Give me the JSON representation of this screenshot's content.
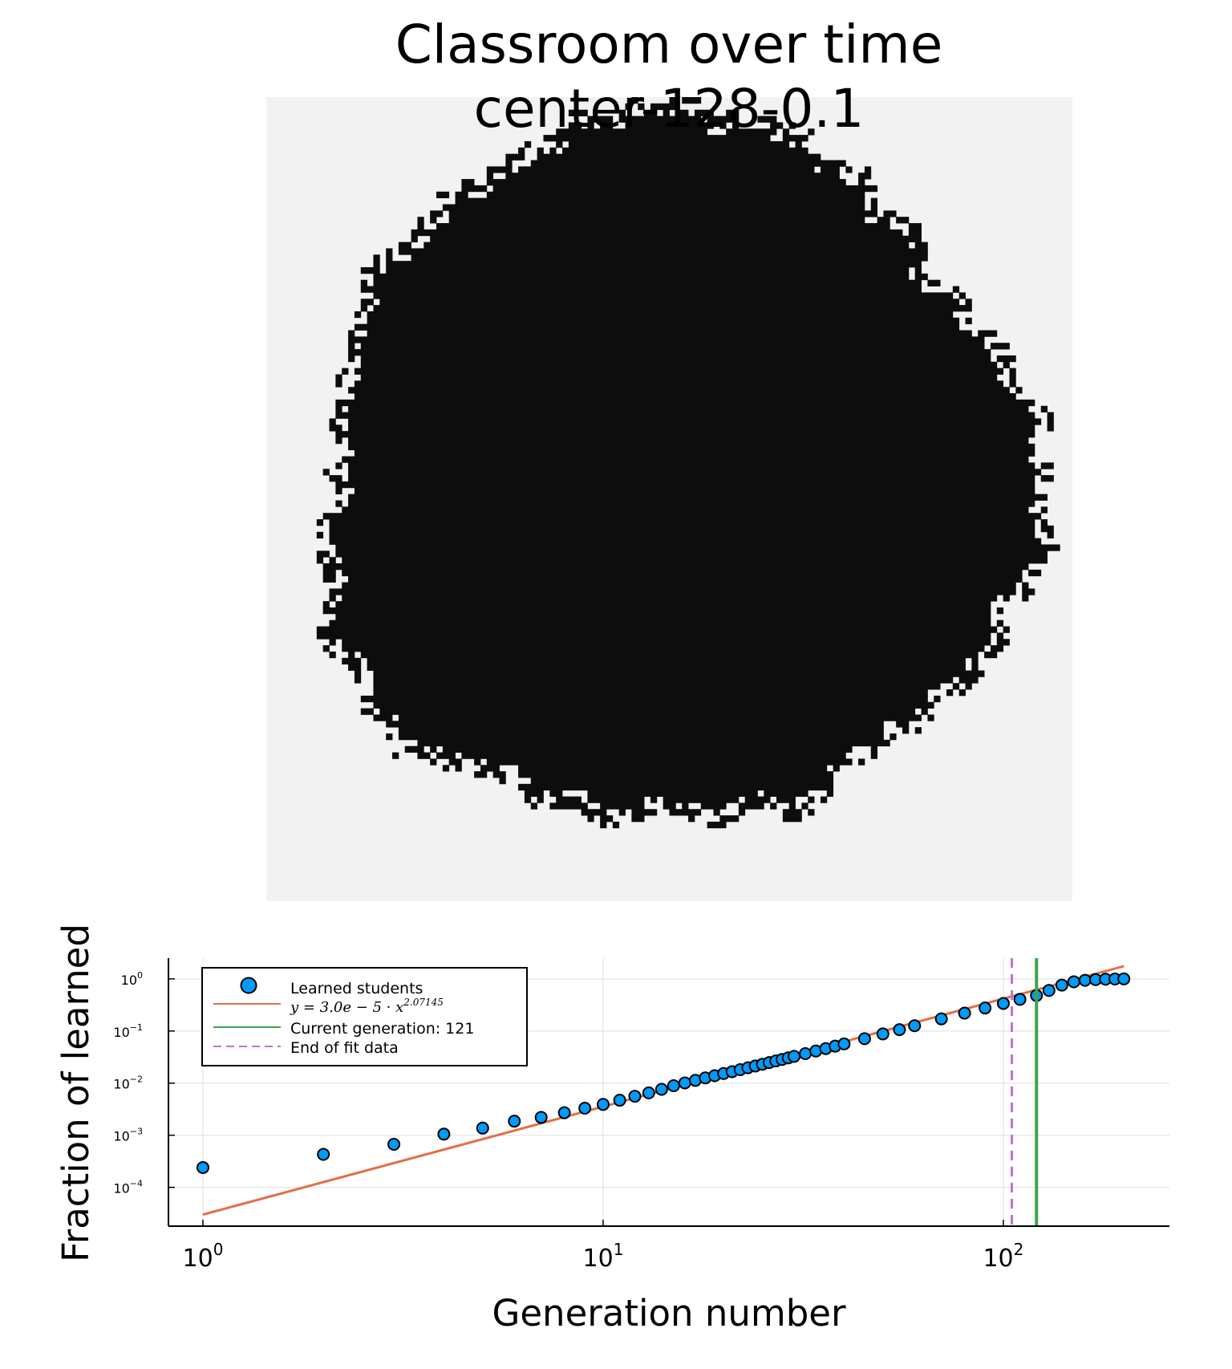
{
  "title_line1": "Classroom over time",
  "title_line2": "center-128-0.1",
  "colors": {
    "classroom_background": "#f2f2f2",
    "learned_cell": "#0d0d0d",
    "scatter": "#009af9",
    "fit": "#e26f46",
    "current_generation": "#3ea44e",
    "end_of_fit": "#c271d2"
  },
  "chart_data": [
    {
      "type": "heatmap",
      "title": "Classroom over time\ncenter-128-0.1",
      "description_values": {
        "grid_size": 128,
        "state": "learned region shown black, unlearned shown light gray"
      }
    },
    {
      "type": "scatter",
      "xlabel": "Generation number",
      "ylabel": "Fraction of learned",
      "xscale": "log10",
      "yscale": "log10",
      "xlim": [
        0.82,
        260
      ],
      "ylim": [
        1.8e-05,
        2.5
      ],
      "x_ticks": [
        1,
        10,
        100
      ],
      "x_tick_labels": [
        {
          "base": "10",
          "exp": "0"
        },
        {
          "base": "10",
          "exp": "1"
        },
        {
          "base": "10",
          "exp": "2"
        }
      ],
      "y_ticks": [
        0.0001,
        0.001,
        0.01,
        0.1,
        1
      ],
      "y_tick_labels": [
        {
          "base": "10",
          "exp": "−4"
        },
        {
          "base": "10",
          "exp": "−3"
        },
        {
          "base": "10",
          "exp": "−2"
        },
        {
          "base": "10",
          "exp": "−1"
        },
        {
          "base": "10",
          "exp": "0"
        }
      ],
      "grid": true,
      "legend_position": "top-left",
      "legend": {
        "scatter_label": "Learned students",
        "fit_label": "y = 3.0e − 5 · x",
        "fit_exponent": "2.07145",
        "current_label": "Current generation: 121",
        "end_label": "End of fit data"
      },
      "series": [
        {
          "name": "Learned students",
          "kind": "scatter",
          "x": [
            1,
            2,
            3,
            4,
            5,
            6,
            7,
            8,
            9,
            10,
            11,
            12,
            13,
            14,
            15,
            16,
            17,
            18,
            19,
            20,
            21,
            22,
            23,
            24,
            25,
            26,
            27,
            28,
            29,
            30,
            32,
            34,
            36,
            38,
            40,
            45,
            50,
            55,
            60,
            70,
            80,
            90,
            100,
            110,
            121,
            130,
            140,
            150,
            160,
            170,
            180,
            190,
            200
          ],
          "y": [
            0.00024,
            0.00043,
            0.00067,
            0.00105,
            0.00137,
            0.00186,
            0.0022,
            0.0027,
            0.0033,
            0.0039,
            0.0047,
            0.0056,
            0.0065,
            0.0076,
            0.0089,
            0.0101,
            0.0113,
            0.0126,
            0.0139,
            0.0153,
            0.0166,
            0.0181,
            0.0197,
            0.0213,
            0.023,
            0.0248,
            0.0266,
            0.0285,
            0.0305,
            0.0326,
            0.0368,
            0.0413,
            0.046,
            0.0512,
            0.0565,
            0.0712,
            0.0879,
            0.106,
            0.126,
            0.171,
            0.22,
            0.276,
            0.338,
            0.405,
            0.48,
            0.6,
            0.76,
            0.88,
            0.94,
            0.97,
            0.985,
            0.995,
            1.0
          ]
        },
        {
          "name": "y = 3.0e − 5 · x^2.07145",
          "kind": "fit",
          "coefficient": 3e-05,
          "exponent": 2.07145,
          "x_range": [
            1,
            200
          ]
        },
        {
          "name": "Current generation: 121",
          "kind": "vline",
          "x": 121
        },
        {
          "name": "End of fit data",
          "kind": "vline-dashed",
          "x": 105
        }
      ]
    }
  ]
}
